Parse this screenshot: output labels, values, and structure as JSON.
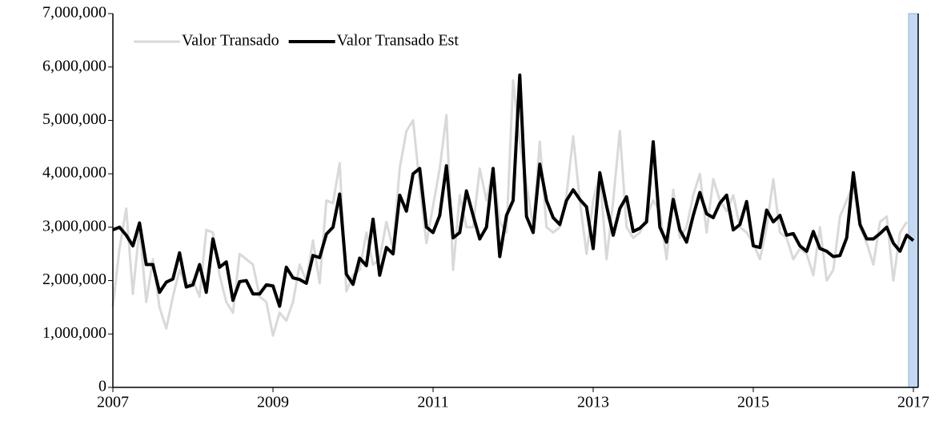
{
  "chart_data": {
    "type": "line",
    "x": [
      2007,
      2007.083,
      2007.167,
      2007.25,
      2007.333,
      2007.417,
      2007.5,
      2007.583,
      2007.667,
      2007.75,
      2007.833,
      2007.917,
      2008,
      2008.083,
      2008.167,
      2008.25,
      2008.333,
      2008.417,
      2008.5,
      2008.583,
      2008.667,
      2008.75,
      2008.833,
      2008.917,
      2009,
      2009.083,
      2009.167,
      2009.25,
      2009.333,
      2009.417,
      2009.5,
      2009.583,
      2009.667,
      2009.75,
      2009.833,
      2009.917,
      2010,
      2010.083,
      2010.167,
      2010.25,
      2010.333,
      2010.417,
      2010.5,
      2010.583,
      2010.667,
      2010.75,
      2010.833,
      2010.917,
      2011,
      2011.083,
      2011.167,
      2011.25,
      2011.333,
      2011.417,
      2011.5,
      2011.583,
      2011.667,
      2011.75,
      2011.833,
      2011.917,
      2012,
      2012.083,
      2012.167,
      2012.25,
      2012.333,
      2012.417,
      2012.5,
      2012.583,
      2012.667,
      2012.75,
      2012.833,
      2012.917,
      2013,
      2013.083,
      2013.167,
      2013.25,
      2013.333,
      2013.417,
      2013.5,
      2013.583,
      2013.667,
      2013.75,
      2013.833,
      2013.917,
      2014,
      2014.083,
      2014.167,
      2014.25,
      2014.333,
      2014.417,
      2014.5,
      2014.583,
      2014.667,
      2014.75,
      2014.833,
      2014.917,
      2015,
      2015.083,
      2015.167,
      2015.25,
      2015.333,
      2015.417,
      2015.5,
      2015.583,
      2015.667,
      2015.75,
      2015.833,
      2015.917,
      2016,
      2016.083,
      2016.167,
      2016.25,
      2016.333,
      2016.417,
      2016.5,
      2016.583,
      2016.667,
      2016.75,
      2016.833,
      2016.917,
      2017
    ],
    "series": [
      {
        "name": "Valor Transado",
        "color": "#d9d9d9",
        "values": [
          1520000,
          2600000,
          3350000,
          1750000,
          3000000,
          1600000,
          2400000,
          1500000,
          1100000,
          1700000,
          2200000,
          1900000,
          2000000,
          1700000,
          2950000,
          2900000,
          2100000,
          1600000,
          1400000,
          2500000,
          2400000,
          2300000,
          1700000,
          1600000,
          970000,
          1400000,
          1250000,
          1600000,
          2300000,
          2000000,
          2750000,
          1950000,
          3500000,
          3450000,
          4200000,
          1800000,
          2100000,
          2200000,
          2900000,
          2300000,
          2400000,
          3100000,
          2600000,
          4100000,
          4800000,
          5000000,
          3800000,
          2700000,
          3400000,
          4100000,
          5100000,
          2200000,
          3600000,
          3000000,
          3000000,
          4100000,
          3500000,
          4100000,
          3100000,
          2900000,
          5750000,
          4600000,
          3800000,
          3000000,
          4600000,
          3000000,
          2900000,
          3000000,
          3600000,
          4700000,
          3500000,
          2500000,
          3500000,
          4000000,
          2400000,
          3500000,
          4800000,
          3000000,
          2800000,
          2900000,
          3200000,
          3500000,
          3300000,
          2400000,
          3700000,
          2800000,
          3000000,
          3600000,
          4000000,
          2900000,
          3900000,
          3500000,
          3300000,
          3600000,
          3000000,
          2900000,
          2700000,
          2400000,
          3000000,
          3900000,
          2900000,
          2800000,
          2400000,
          2600000,
          2500000,
          2100000,
          3000000,
          2000000,
          2200000,
          3200000,
          3500000,
          3800000,
          3000000,
          2700000,
          2300000,
          3100000,
          3200000,
          2000000,
          2900000,
          3100000,
          null
        ]
      },
      {
        "name": "Valor Transado Est",
        "color": "#000000",
        "values": [
          2950000,
          3000000,
          2850000,
          2650000,
          3080000,
          2300000,
          2300000,
          1780000,
          1970000,
          2030000,
          2520000,
          1880000,
          1920000,
          2300000,
          1780000,
          2780000,
          2250000,
          2350000,
          1630000,
          1980000,
          2000000,
          1750000,
          1750000,
          1920000,
          1900000,
          1520000,
          2250000,
          2050000,
          2020000,
          1950000,
          2470000,
          2430000,
          2870000,
          3000000,
          3620000,
          2120000,
          1930000,
          2420000,
          2280000,
          3150000,
          2100000,
          2620000,
          2500000,
          3600000,
          3300000,
          4000000,
          4100000,
          3000000,
          2900000,
          3220000,
          4150000,
          2800000,
          2900000,
          3680000,
          3220000,
          2780000,
          3000000,
          4100000,
          2450000,
          3220000,
          3500000,
          5850000,
          3200000,
          2900000,
          4180000,
          3500000,
          3180000,
          3050000,
          3500000,
          3700000,
          3520000,
          3380000,
          2600000,
          4020000,
          3400000,
          2850000,
          3350000,
          3570000,
          2920000,
          2980000,
          3100000,
          4600000,
          3000000,
          2720000,
          3520000,
          2950000,
          2720000,
          3220000,
          3650000,
          3250000,
          3180000,
          3450000,
          3600000,
          2950000,
          3050000,
          3480000,
          2650000,
          2620000,
          3320000,
          3100000,
          3220000,
          2850000,
          2880000,
          2650000,
          2550000,
          2920000,
          2600000,
          2550000,
          2450000,
          2470000,
          2800000,
          4020000,
          3050000,
          2780000,
          2780000,
          2880000,
          3000000,
          2700000,
          2550000,
          2850000,
          2750000
        ]
      }
    ],
    "xlim": [
      2007,
      2017.06
    ],
    "xticks": [
      2007,
      2009,
      2011,
      2013,
      2015,
      2017
    ],
    "ylim": [
      0,
      7000000
    ],
    "yticks": [
      0,
      {
        "value": 1000000,
        "label": "1,000,000"
      },
      {
        "value": 2000000,
        "label": "2,000,000"
      },
      {
        "value": 3000000,
        "label": "3,000,000"
      },
      {
        "value": 4000000,
        "label": "4,000,000"
      },
      {
        "value": 5000000,
        "label": "5,000,000"
      },
      {
        "value": 6000000,
        "label": "6,000,000"
      },
      {
        "value": 7000000,
        "label": "7,000,000"
      }
    ],
    "highlight_xlim": [
      2016.94,
      2017.06
    ],
    "highlight_color": "#c5d9f1",
    "legend": "upper left",
    "grid": false
  }
}
